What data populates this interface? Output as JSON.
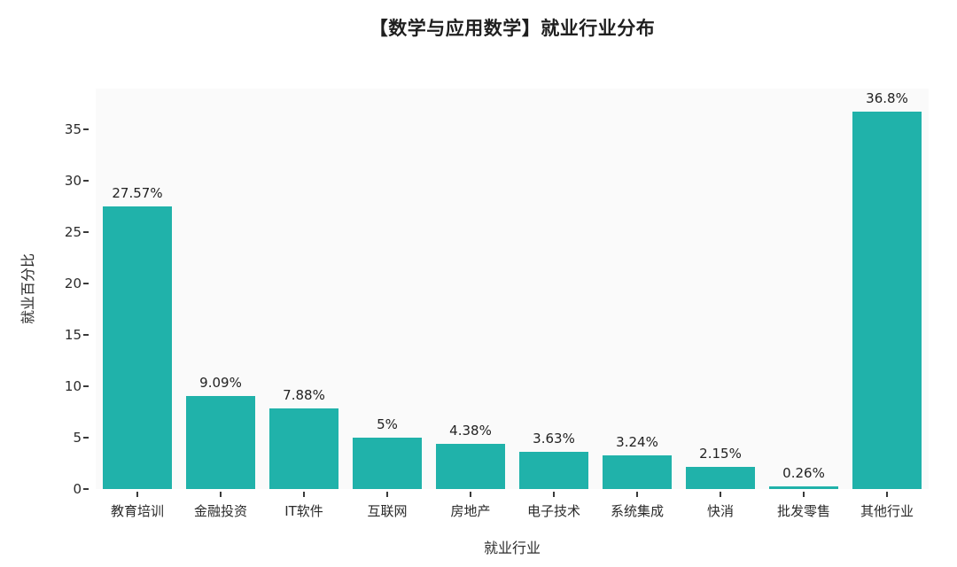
{
  "chart_data": {
    "type": "bar",
    "title": "【数学与应用数学】就业行业分布",
    "xlabel": "就业行业",
    "ylabel": "就业百分比",
    "categories": [
      "教育培训",
      "金融投资",
      "IT软件",
      "互联网",
      "房地产",
      "电子技术",
      "系统集成",
      "快消",
      "批发零售",
      "其他行业"
    ],
    "values": [
      27.57,
      9.09,
      7.88,
      5,
      4.38,
      3.63,
      3.24,
      2.15,
      0.26,
      36.8
    ],
    "value_labels": [
      "27.57%",
      "9.09%",
      "7.88%",
      "5%",
      "4.38%",
      "3.63%",
      "3.24%",
      "2.15%",
      "0.26%",
      "36.8%"
    ],
    "yticks": [
      0,
      5,
      10,
      15,
      20,
      25,
      30,
      35
    ],
    "ylim": [
      0,
      39
    ],
    "grid": false,
    "legend_position": "none",
    "bar_color": "#20b2aa",
    "plot_background": "#fafafa",
    "text_color": "#2b2b2b"
  }
}
